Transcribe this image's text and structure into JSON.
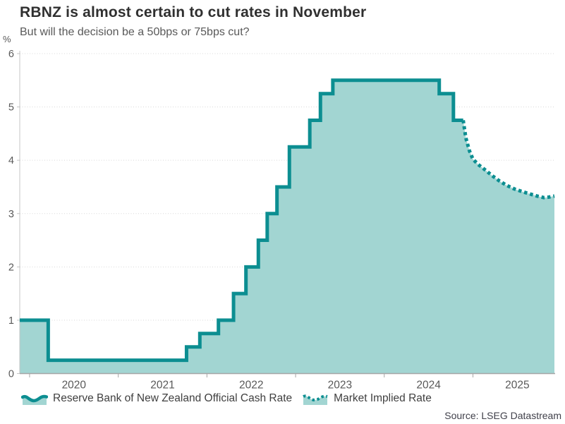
{
  "header": {
    "title": "RBNZ is almost certain to cut rates in November",
    "subtitle": "But will the decision be a 50bps or 75bps cut?"
  },
  "source": "Source: LSEG Datastream",
  "legend": {
    "items": [
      {
        "label": "Reserve Bank of New Zealand Official Cash Rate",
        "icon": "solid-wave-area-icon"
      },
      {
        "label": "Market Implied Rate",
        "icon": "dotted-wave-area-icon"
      }
    ]
  },
  "chart_data": {
    "type": "line",
    "title": "RBNZ is almost certain to cut rates in November",
    "subtitle": "But will the decision be a 50bps or 75bps cut?",
    "ylabel": "%",
    "xlabel": "",
    "grid": "horizontal-dotted",
    "legend_position": "bottom",
    "x_domain": [
      2019.889,
      2025.919
    ],
    "y_domain": [
      0,
      6
    ],
    "y_ticks": [
      0,
      1,
      2,
      3,
      4,
      5,
      6
    ],
    "y_tick_labels": [
      "0",
      "1",
      "2",
      "3",
      "4",
      "5",
      "6"
    ],
    "x_ticks": [
      2020,
      2021,
      2022,
      2023,
      2024,
      2025
    ],
    "x_tick_labels": [
      "2020",
      "2021",
      "2022",
      "2023",
      "2024",
      "2025"
    ],
    "colors": {
      "accent": "#0c8e91",
      "fill": "#a2d5d2",
      "grid": "#d8d8d8",
      "y_axis": "#c4c4c4",
      "x_axis": "#a6a6a6",
      "tick_label": "#595959"
    },
    "series": [
      {
        "name": "Reserve Bank of New Zealand Official Cash Rate",
        "type": "step",
        "line_style": "solid",
        "color": "#0c8e91",
        "fill_color": "#a2d5d2",
        "end_x": 2024.89,
        "points": [
          [
            2019.889,
            1.0
          ],
          [
            2020.21,
            0.25
          ],
          [
            2021.77,
            0.5
          ],
          [
            2021.92,
            0.75
          ],
          [
            2022.13,
            1.0
          ],
          [
            2022.3,
            1.5
          ],
          [
            2022.44,
            2.0
          ],
          [
            2022.58,
            2.5
          ],
          [
            2022.68,
            3.0
          ],
          [
            2022.79,
            3.5
          ],
          [
            2022.93,
            4.25
          ],
          [
            2023.16,
            4.75
          ],
          [
            2023.28,
            5.25
          ],
          [
            2023.42,
            5.5
          ],
          [
            2024.62,
            5.25
          ],
          [
            2024.78,
            4.75
          ]
        ]
      },
      {
        "name": "Market Implied Rate",
        "type": "line",
        "line_style": "dotted",
        "color": "#0c8e91",
        "points": [
          [
            2024.89,
            4.75
          ],
          [
            2024.92,
            4.42
          ],
          [
            2024.96,
            4.18
          ],
          [
            2025.0,
            4.02
          ],
          [
            2025.06,
            3.92
          ],
          [
            2025.13,
            3.83
          ],
          [
            2025.21,
            3.72
          ],
          [
            2025.3,
            3.61
          ],
          [
            2025.38,
            3.53
          ],
          [
            2025.47,
            3.46
          ],
          [
            2025.56,
            3.41
          ],
          [
            2025.64,
            3.37
          ],
          [
            2025.72,
            3.33
          ],
          [
            2025.8,
            3.3
          ],
          [
            2025.86,
            3.31
          ],
          [
            2025.919,
            3.33
          ]
        ]
      }
    ]
  }
}
